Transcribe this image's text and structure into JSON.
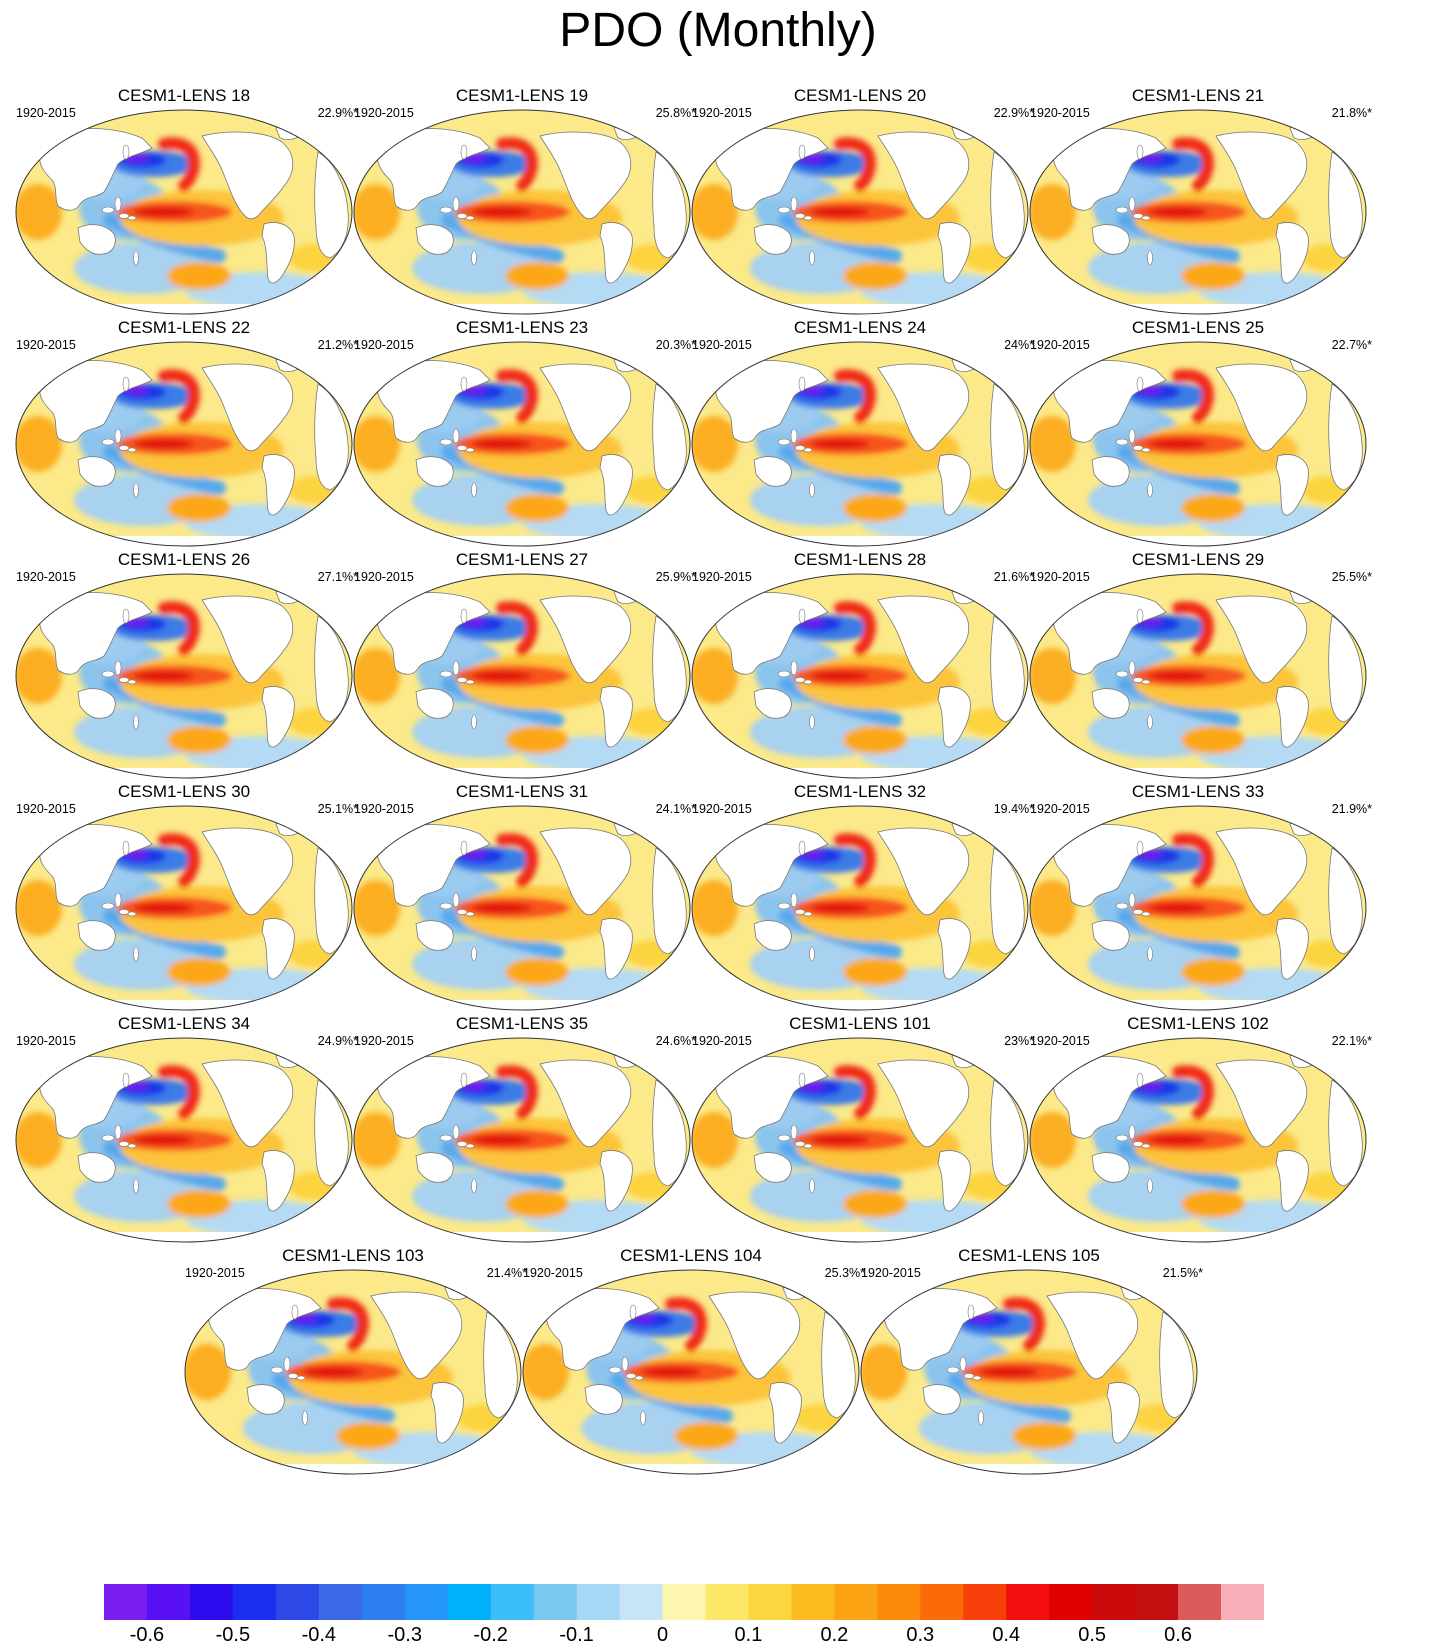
{
  "title": "PDO (Monthly)",
  "panels": [
    {
      "title": "CESM1-LENS 18",
      "period": "1920-2015",
      "variance": "22.9%*"
    },
    {
      "title": "CESM1-LENS 19",
      "period": "1920-2015",
      "variance": "25.8%*"
    },
    {
      "title": "CESM1-LENS 20",
      "period": "1920-2015",
      "variance": "22.9%*"
    },
    {
      "title": "CESM1-LENS 21",
      "period": "1920-2015",
      "variance": "21.8%*"
    },
    {
      "title": "CESM1-LENS 22",
      "period": "1920-2015",
      "variance": "21.2%*"
    },
    {
      "title": "CESM1-LENS 23",
      "period": "1920-2015",
      "variance": "20.3%*"
    },
    {
      "title": "CESM1-LENS 24",
      "period": "1920-2015",
      "variance": "24%*"
    },
    {
      "title": "CESM1-LENS 25",
      "period": "1920-2015",
      "variance": "22.7%*"
    },
    {
      "title": "CESM1-LENS 26",
      "period": "1920-2015",
      "variance": "27.1%*"
    },
    {
      "title": "CESM1-LENS 27",
      "period": "1920-2015",
      "variance": "25.9%*"
    },
    {
      "title": "CESM1-LENS 28",
      "period": "1920-2015",
      "variance": "21.6%*"
    },
    {
      "title": "CESM1-LENS 29",
      "period": "1920-2015",
      "variance": "25.5%*"
    },
    {
      "title": "CESM1-LENS 30",
      "period": "1920-2015",
      "variance": "25.1%*"
    },
    {
      "title": "CESM1-LENS 31",
      "period": "1920-2015",
      "variance": "24.1%*"
    },
    {
      "title": "CESM1-LENS 32",
      "period": "1920-2015",
      "variance": "19.4%*"
    },
    {
      "title": "CESM1-LENS 33",
      "period": "1920-2015",
      "variance": "21.9%*"
    },
    {
      "title": "CESM1-LENS 34",
      "period": "1920-2015",
      "variance": "24.9%*"
    },
    {
      "title": "CESM1-LENS 35",
      "period": "1920-2015",
      "variance": "24.6%*"
    },
    {
      "title": "CESM1-LENS 101",
      "period": "1920-2015",
      "variance": "23%*"
    },
    {
      "title": "CESM1-LENS 102",
      "period": "1920-2015",
      "variance": "22.1%*"
    },
    {
      "title": "CESM1-LENS 103",
      "period": "1920-2015",
      "variance": "21.4%*"
    },
    {
      "title": "CESM1-LENS 104",
      "period": "1920-2015",
      "variance": "25.3%*"
    },
    {
      "title": "CESM1-LENS 105",
      "period": "1920-2015",
      "variance": "21.5%*"
    }
  ],
  "colorbar": {
    "colors": [
      "#7a1ef0",
      "#5a10f5",
      "#2e0cf0",
      "#1a2ef0",
      "#2c48e6",
      "#3a6ae6",
      "#2e7ef2",
      "#2496f8",
      "#00b0f8",
      "#3cbef8",
      "#7ac8f0",
      "#a4d8f4",
      "#c6e6f8",
      "#fdf6b0",
      "#fce866",
      "#fcd640",
      "#fcbc20",
      "#fca414",
      "#fc8a0c",
      "#fa6a08",
      "#f8400a",
      "#f41010",
      "#e00202",
      "#cc0a0a",
      "#c41010",
      "#dc5a5a",
      "#f8b0b8"
    ],
    "labels": [
      "-0.6",
      "-0.5",
      "-0.4",
      "-0.3",
      "-0.2",
      "-0.1",
      "0",
      "0.1",
      "0.2",
      "0.3",
      "0.4",
      "0.5",
      "0.6"
    ]
  }
}
